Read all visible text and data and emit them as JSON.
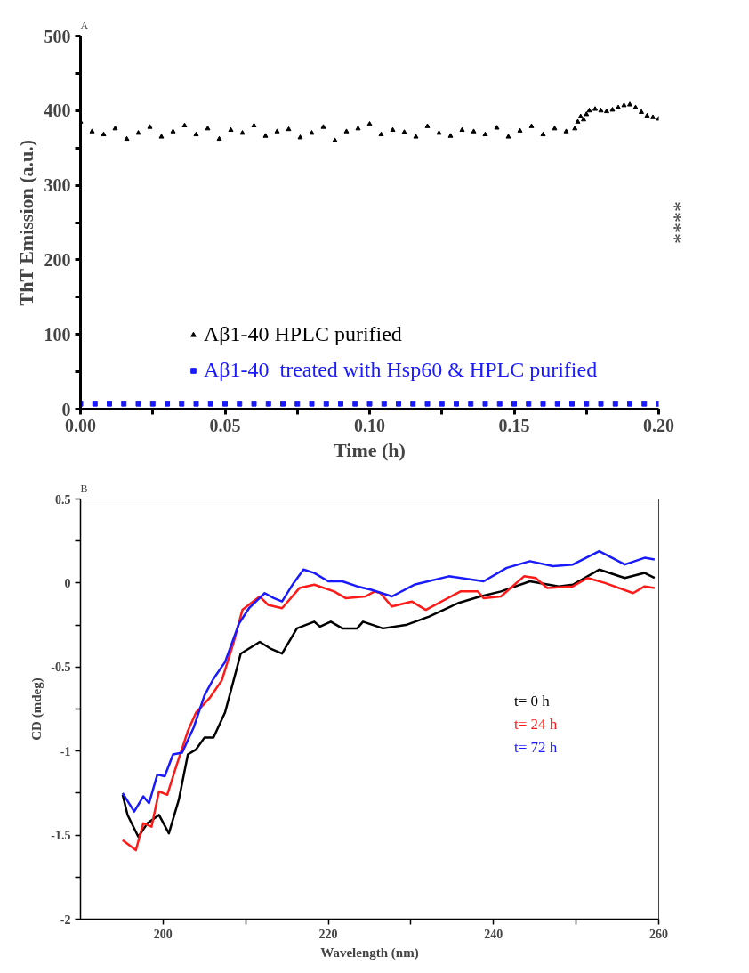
{
  "chart_data": [
    {
      "type": "scatter",
      "title": "A",
      "xlabel": "Time (h)",
      "ylabel": "ThT Emission (a.u.)",
      "xlim": [
        0,
        0.2
      ],
      "ylim": [
        0,
        500
      ],
      "xticks": [
        {
          "value": 0,
          "label": "0.00"
        },
        {
          "value": 0.025,
          "label": null
        },
        {
          "value": 0.05,
          "label": "0.05"
        },
        {
          "value": 0.075,
          "label": null
        },
        {
          "value": 0.1,
          "label": "0.10"
        },
        {
          "value": 0.125,
          "label": null
        },
        {
          "value": 0.15,
          "label": "0.15"
        },
        {
          "value": 0.175,
          "label": null
        },
        {
          "value": 0.2,
          "label": "0.20"
        }
      ],
      "yticks": [
        0,
        {
          "value": 50,
          "label": null
        },
        100,
        {
          "value": 150,
          "label": null
        },
        200,
        {
          "value": 250,
          "label": null
        },
        300,
        {
          "value": 350,
          "label": null
        },
        400,
        {
          "value": 450,
          "label": null
        },
        500
      ],
      "legend": "bottom",
      "grid": false,
      "annotations": [
        "****"
      ],
      "series": [
        {
          "name": "Aβ1-40 HPLC purified",
          "color": "#000000",
          "marker": "triangle",
          "x": [
            0,
            0.004,
            0.008,
            0.012,
            0.016,
            0.02,
            0.024,
            0.028,
            0.032,
            0.036,
            0.04,
            0.044,
            0.048,
            0.052,
            0.056,
            0.06,
            0.064,
            0.068,
            0.072,
            0.076,
            0.08,
            0.084,
            0.088,
            0.092,
            0.096,
            0.1,
            0.104,
            0.108,
            0.112,
            0.116,
            0.12,
            0.124,
            0.128,
            0.132,
            0.136,
            0.14,
            0.144,
            0.148,
            0.152,
            0.156,
            0.16,
            0.164,
            0.168,
            0.171,
            0.172,
            0.173,
            0.174,
            0.175,
            0.176,
            0.178,
            0.18,
            0.182,
            0.184,
            0.186,
            0.188,
            0.19,
            0.192,
            0.194,
            0.196,
            0.198,
            0.2
          ],
          "values": [
            385,
            372,
            368,
            376,
            362,
            370,
            378,
            365,
            372,
            380,
            368,
            376,
            362,
            374,
            370,
            380,
            366,
            372,
            375,
            364,
            370,
            378,
            360,
            372,
            376,
            382,
            368,
            374,
            371,
            365,
            379,
            370,
            366,
            374,
            372,
            368,
            377,
            365,
            373,
            379,
            368,
            376,
            372,
            376,
            385,
            392,
            388,
            395,
            400,
            402,
            400,
            399,
            401,
            404,
            407,
            408,
            404,
            398,
            393,
            391,
            389
          ]
        },
        {
          "name": "Aβ1-40  treated with Hsp60 & HPLC purified",
          "color": "#1a1aff",
          "marker": "square",
          "x": [
            0,
            0.005,
            0.01,
            0.015,
            0.02,
            0.025,
            0.03,
            0.035,
            0.04,
            0.045,
            0.05,
            0.055,
            0.06,
            0.065,
            0.07,
            0.075,
            0.08,
            0.085,
            0.09,
            0.095,
            0.1,
            0.105,
            0.11,
            0.115,
            0.12,
            0.125,
            0.13,
            0.135,
            0.14,
            0.145,
            0.15,
            0.155,
            0.16,
            0.165,
            0.17,
            0.175,
            0.18,
            0.185,
            0.19,
            0.195,
            0.2
          ],
          "values": [
            7,
            7,
            7,
            7,
            7,
            7,
            7,
            7,
            7,
            7,
            7,
            7,
            7,
            7,
            7,
            7,
            7,
            7,
            7,
            7,
            7,
            7,
            7,
            7,
            7,
            7,
            7,
            7,
            7,
            7,
            7,
            7,
            7,
            7,
            7,
            7,
            7,
            7,
            7,
            7,
            7
          ]
        }
      ]
    },
    {
      "type": "line",
      "title": "B",
      "xlabel": "Wavelength (nm)",
      "ylabel": "CD (mdeg)",
      "xlim": [
        190,
        260
      ],
      "ylim": [
        -2,
        0.5
      ],
      "xticks": [
        200,
        {
          "value": 210,
          "label": null
        },
        220,
        {
          "value": 230,
          "label": null
        },
        240,
        {
          "value": 250,
          "label": null
        },
        260
      ],
      "yticks": [
        -2,
        {
          "value": -1.75,
          "label": null
        },
        -1.5,
        {
          "value": -1.25,
          "label": null
        },
        -1,
        {
          "value": -0.75,
          "label": null
        },
        -0.5,
        {
          "value": -0.25,
          "label": null
        },
        0,
        {
          "value": 0.25,
          "label": null
        },
        0.5
      ],
      "legend": "right",
      "grid": false,
      "line_style": "solid",
      "series": [
        {
          "name": "t= 0 h",
          "color": "#000000",
          "x": [
            195.1,
            195.7,
            197.0,
            198.1,
            199.5,
            200.7,
            201.9,
            203.0,
            204.0,
            205.0,
            206.1,
            207.5,
            209.4,
            211.7,
            213.0,
            214.4,
            216.2,
            218.3,
            219.0,
            220.3,
            221.7,
            223.5,
            224.2,
            226.6,
            229.4,
            232.2,
            235.7,
            238.4,
            240.9,
            244.4,
            247.9,
            249.6,
            252.8,
            255.9,
            258.3,
            259.5
          ],
          "values": [
            -1.26,
            -1.38,
            -1.51,
            -1.43,
            -1.38,
            -1.49,
            -1.29,
            -1.02,
            -0.99,
            -0.92,
            -0.92,
            -0.77,
            -0.42,
            -0.35,
            -0.39,
            -0.42,
            -0.27,
            -0.23,
            -0.26,
            -0.23,
            -0.27,
            -0.27,
            -0.23,
            -0.27,
            -0.25,
            -0.2,
            -0.12,
            -0.08,
            -0.05,
            0.01,
            -0.02,
            -0.01,
            0.08,
            0.03,
            0.06,
            0.03
          ]
        },
        {
          "name": "t= 24 h",
          "color": "#ff1a1a",
          "x": [
            195.1,
            196.7,
            197.6,
            198.6,
            199.5,
            200.5,
            201.6,
            203.0,
            204.0,
            205.7,
            207.1,
            208.5,
            209.6,
            211.7,
            212.7,
            214.4,
            216.5,
            218.3,
            220.7,
            222.1,
            224.5,
            225.6,
            226.3,
            227.7,
            230.1,
            231.8,
            236.0,
            238.1,
            238.8,
            240.9,
            243.7,
            245.1,
            246.5,
            249.6,
            251.4,
            253.5,
            256.9,
            258.3,
            259.5
          ],
          "values": [
            -1.53,
            -1.59,
            -1.43,
            -1.45,
            -1.24,
            -1.26,
            -1.09,
            -0.88,
            -0.77,
            -0.68,
            -0.58,
            -0.36,
            -0.16,
            -0.08,
            -0.13,
            -0.15,
            -0.03,
            -0.01,
            -0.05,
            -0.09,
            -0.08,
            -0.05,
            -0.06,
            -0.14,
            -0.11,
            -0.16,
            -0.05,
            -0.05,
            -0.09,
            -0.08,
            0.04,
            0.03,
            -0.03,
            -0.02,
            0.03,
            0.0,
            -0.06,
            -0.02,
            -0.03
          ]
        },
        {
          "name": "t= 72 h",
          "color": "#1a1aff",
          "x": [
            195.1,
            196.5,
            197.6,
            198.3,
            199.3,
            200.2,
            201.2,
            202.3,
            203.7,
            205.0,
            206.1,
            207.5,
            209.2,
            210.4,
            212.3,
            213.4,
            214.4,
            215.8,
            217.0,
            218.3,
            220.0,
            221.7,
            223.5,
            225.2,
            227.7,
            230.4,
            234.6,
            238.8,
            241.6,
            244.4,
            247.2,
            249.6,
            252.8,
            255.9,
            258.3,
            259.5
          ],
          "values": [
            -1.25,
            -1.36,
            -1.27,
            -1.31,
            -1.14,
            -1.15,
            -1.02,
            -1.01,
            -0.86,
            -0.67,
            -0.57,
            -0.47,
            -0.24,
            -0.15,
            -0.06,
            -0.09,
            -0.11,
            0.0,
            0.08,
            0.06,
            0.01,
            0.01,
            -0.02,
            -0.04,
            -0.08,
            -0.01,
            0.04,
            0.01,
            0.09,
            0.13,
            0.1,
            0.11,
            0.19,
            0.11,
            0.15,
            0.14
          ]
        }
      ]
    }
  ]
}
